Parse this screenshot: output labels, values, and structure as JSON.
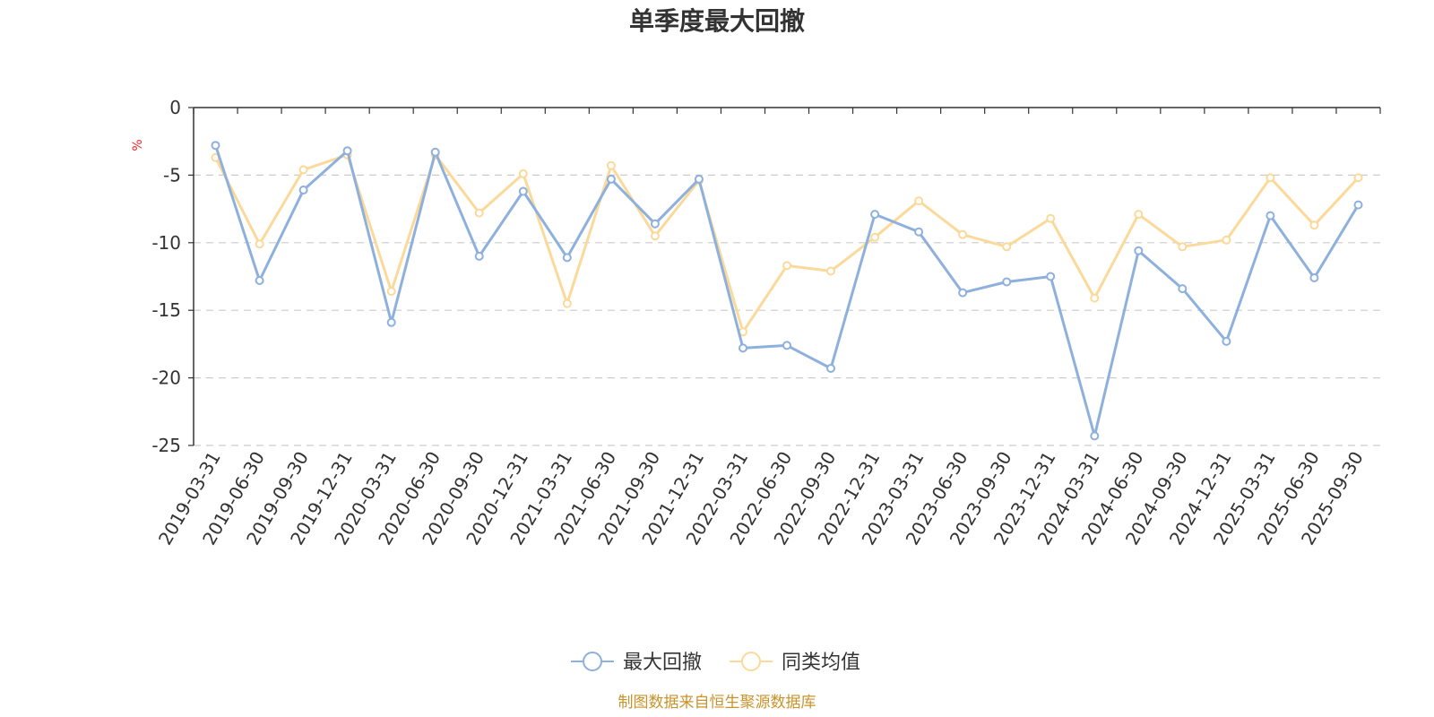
{
  "chart_data": {
    "type": "line",
    "title": "单季度最大回撤",
    "ylabel": "%",
    "xlabel": "",
    "ylim": [
      -25,
      0
    ],
    "yticks": [
      0,
      -5,
      -10,
      -15,
      -20,
      -25
    ],
    "grid": "horizontal-dashed",
    "legend_position": "bottom-center",
    "categories": [
      "2019-03-31",
      "2019-06-30",
      "2019-09-30",
      "2019-12-31",
      "2020-03-31",
      "2020-06-30",
      "2020-09-30",
      "2020-12-31",
      "2021-03-31",
      "2021-06-30",
      "2021-09-30",
      "2021-12-31",
      "2022-03-31",
      "2022-06-30",
      "2022-09-30",
      "2022-12-31",
      "2023-03-31",
      "2023-06-30",
      "2023-09-30",
      "2023-12-31",
      "2024-03-31",
      "2024-06-30",
      "2024-09-30",
      "2024-12-31",
      "2025-03-31",
      "2025-06-30",
      "2025-09-30"
    ],
    "series": [
      {
        "name": "最大回撤",
        "color": "#8eb0dc",
        "values": [
          -2.8,
          -12.8,
          -6.1,
          -3.2,
          -15.9,
          -3.3,
          -11.0,
          -6.2,
          -11.1,
          -5.3,
          -8.6,
          -5.3,
          -17.8,
          -17.6,
          -19.3,
          -7.9,
          -9.2,
          -13.7,
          -12.9,
          -12.5,
          -24.3,
          -10.6,
          -13.4,
          -17.3,
          -8.0,
          -12.6,
          -7.2
        ]
      },
      {
        "name": "同类均值",
        "color": "#fbd99a",
        "values": [
          -3.7,
          -10.1,
          -4.6,
          -3.5,
          -13.6,
          -3.5,
          -7.8,
          -4.9,
          -14.5,
          -4.3,
          -9.5,
          -5.4,
          -16.6,
          -11.7,
          -12.1,
          -9.6,
          -6.9,
          -9.4,
          -10.3,
          -8.2,
          -14.1,
          -7.9,
          -10.3,
          -9.8,
          -5.2,
          -8.7,
          -5.2
        ]
      }
    ]
  },
  "legend": {
    "items": [
      "最大回撤",
      "同类均值"
    ]
  },
  "footer": {
    "source": "制图数据来自恒生聚源数据库"
  }
}
